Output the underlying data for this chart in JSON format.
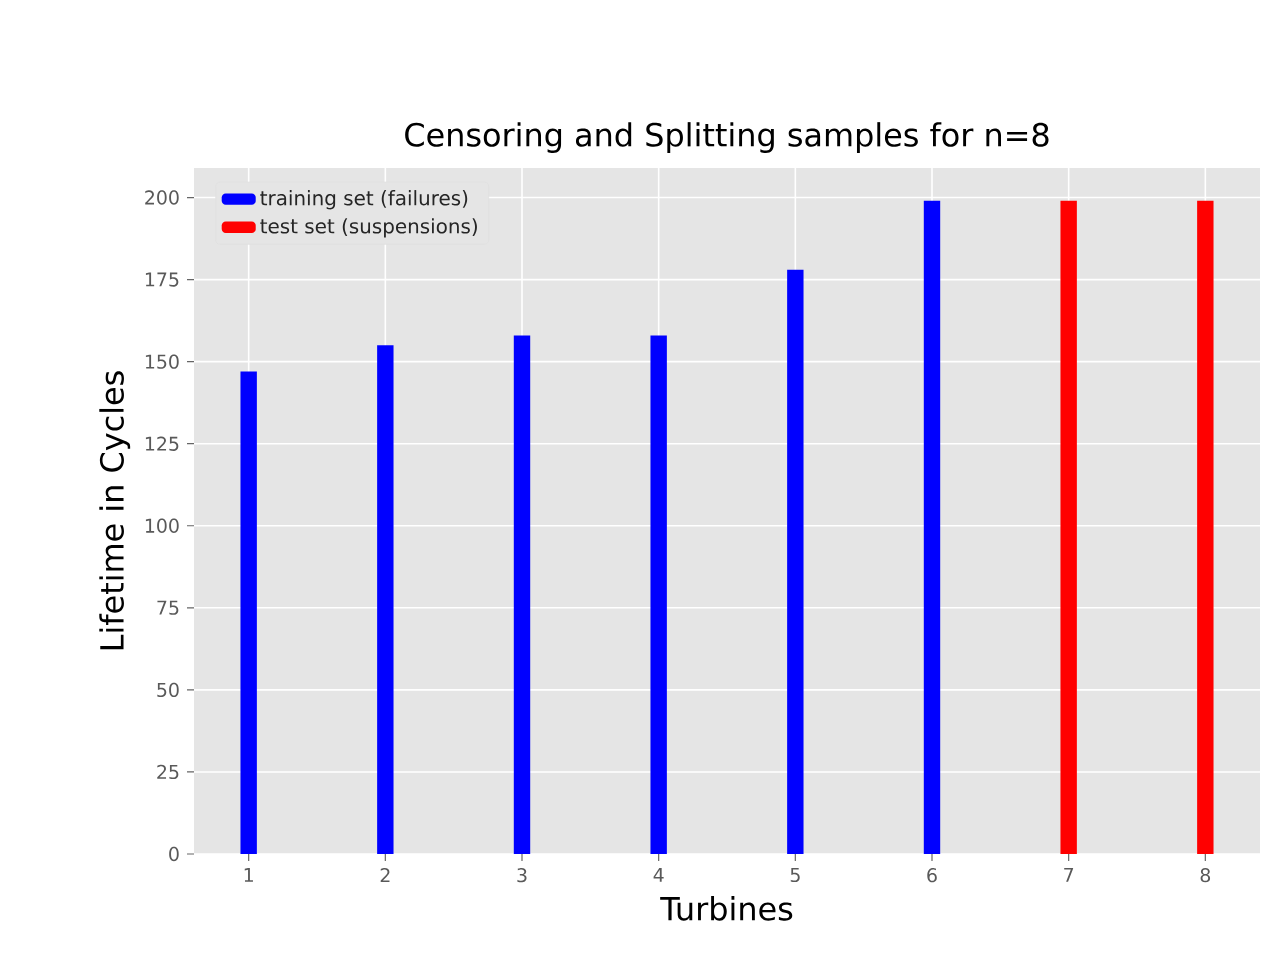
{
  "chart_data": {
    "type": "bar",
    "title": "Censoring and Splitting samples for n=8",
    "xlabel": "Turbines",
    "ylabel": "Lifetime in Cycles",
    "xlim": [
      0.6,
      8.4
    ],
    "xticks": [
      1,
      2,
      3,
      4,
      5,
      6,
      7,
      8
    ],
    "ylim": [
      0,
      209
    ],
    "yticks": [
      0,
      25,
      50,
      75,
      100,
      125,
      150,
      175,
      200
    ],
    "grid": true,
    "legend": "top left",
    "series": [
      {
        "name": "training set (failures)",
        "color": "#0000ff",
        "x": [
          1,
          2,
          3,
          4,
          5,
          6
        ],
        "values": [
          147,
          155,
          158,
          158,
          178,
          199
        ]
      },
      {
        "name": "test set (suspensions)",
        "color": "#ff0000",
        "x": [
          7,
          8
        ],
        "values": [
          199,
          199
        ]
      }
    ]
  }
}
